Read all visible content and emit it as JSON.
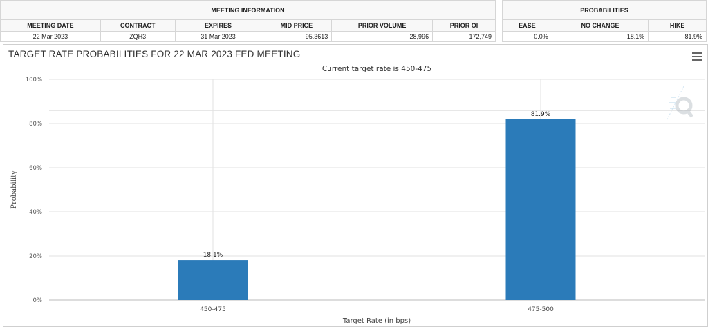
{
  "meeting_info": {
    "header": "MEETING INFORMATION",
    "columns": [
      "MEETING DATE",
      "CONTRACT",
      "EXPIRES",
      "MID PRICE",
      "PRIOR VOLUME",
      "PRIOR OI"
    ],
    "values": [
      "22 Mar 2023",
      "ZQH3",
      "31 Mar 2023",
      "95.3613",
      "28,996",
      "172,749"
    ]
  },
  "probabilities": {
    "header": "PROBABILITIES",
    "columns": [
      "EASE",
      "NO CHANGE",
      "HIKE"
    ],
    "values": [
      "0.0%",
      "18.1%",
      "81.9%"
    ]
  },
  "menu_icon": "hamburger-menu-icon",
  "watermark_icon": "q-logo-watermark",
  "chart_data": {
    "type": "bar",
    "title": "TARGET RATE PROBABILITIES FOR 22 MAR 2023 FED MEETING",
    "subtitle": "Current target rate is 450-475",
    "xlabel": "Target Rate (in bps)",
    "ylabel": "Probability",
    "categories": [
      "450-475",
      "475-500"
    ],
    "values": [
      18.1,
      81.9
    ],
    "data_labels": [
      "18.1%",
      "81.9%"
    ],
    "ylim": [
      0,
      100
    ],
    "yticks": [
      0,
      20,
      40,
      60,
      80,
      100
    ],
    "ytick_labels": [
      "0%",
      "20%",
      "40%",
      "60%",
      "80%",
      "100%"
    ],
    "bar_color": "#2b7bb9",
    "grid": true,
    "legend": "none"
  }
}
